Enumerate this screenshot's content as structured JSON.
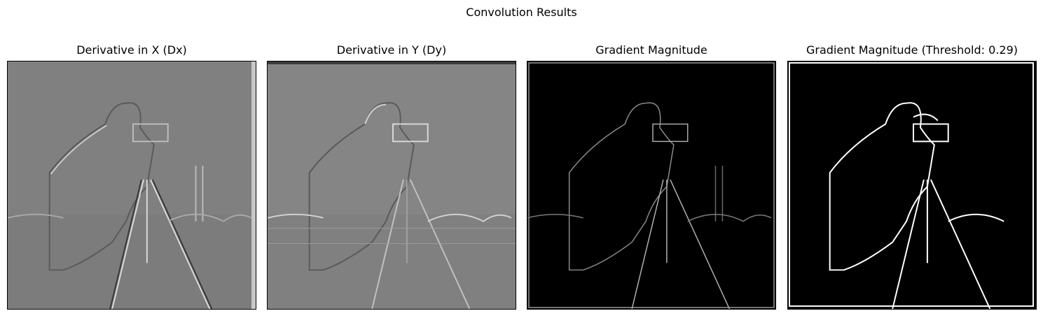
{
  "figure": {
    "suptitle": "Convolution Results"
  },
  "panels": [
    {
      "title": "Derivative in X (Dx)",
      "style": "emboss-gray"
    },
    {
      "title": "Derivative in Y (Dy)",
      "style": "emboss-gray"
    },
    {
      "title": "Gradient Magnitude",
      "style": "dark-edges"
    },
    {
      "title": "Gradient Magnitude (Threshold: 0.29)",
      "style": "binary-edges"
    }
  ],
  "colors": {
    "gray_background": "#808080",
    "edge_light": "#d8d8d8",
    "edge_dark": "#3a3a3a",
    "black": "#000000",
    "white": "#ffffff"
  }
}
